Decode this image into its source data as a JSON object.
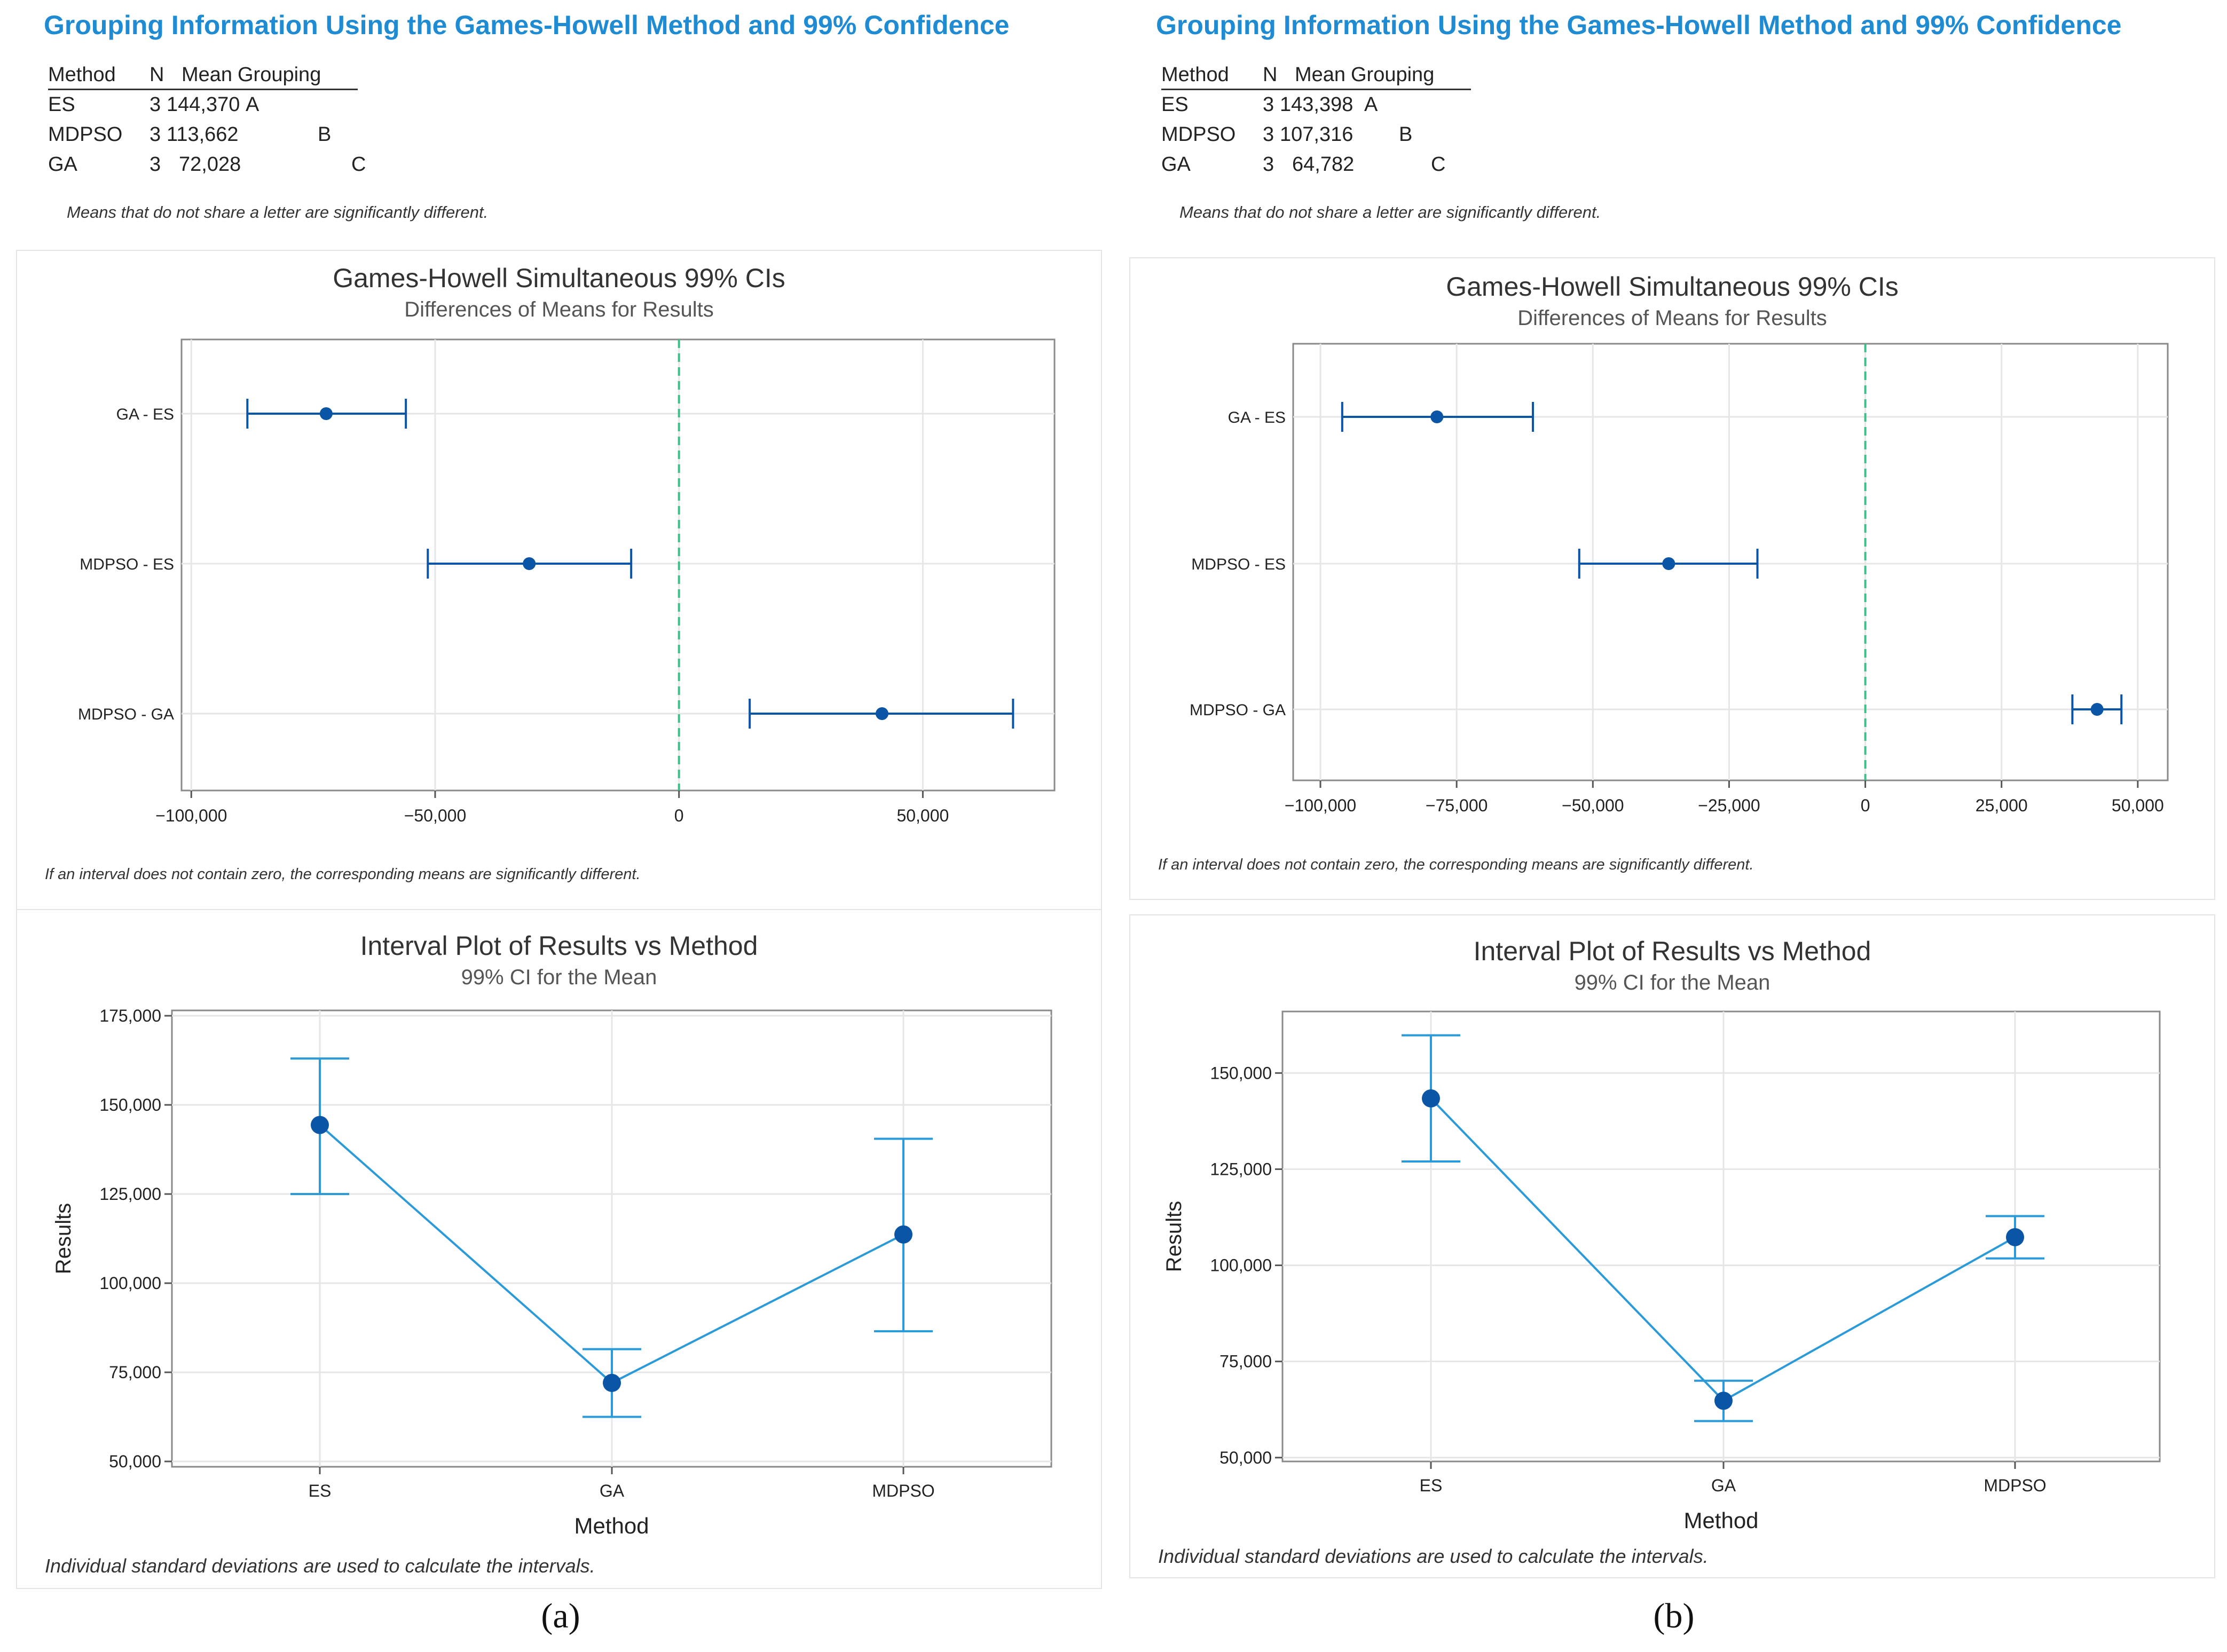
{
  "panels": [
    {
      "caption": "(a)",
      "grouping_title": "Grouping Information Using the Games-Howell Method and 99% Confidence",
      "grouping_header": {
        "method": "Method",
        "n": "N",
        "mean": "Mean",
        "grouping": "Grouping"
      },
      "grouping_rows": [
        {
          "method": "ES",
          "n": "3",
          "mean": "144,370",
          "group": "A"
        },
        {
          "method": "MDPSO",
          "n": "3",
          "mean": "113,662",
          "group": "B"
        },
        {
          "method": "GA",
          "n": "3",
          "mean": "72,028",
          "group": "C"
        }
      ],
      "grouping_note": "Means that do not share a letter are significantly different.",
      "ci_chart": {
        "title": "Games-Howell Simultaneous 99% CIs",
        "subtitle": "Differences of Means for Results",
        "footnote": "If an interval does not contain zero, the corresponding means are significantly different.",
        "xlim": [
          -102000,
          77000
        ],
        "ticks": [
          -100000,
          -50000,
          0,
          50000
        ],
        "tick_labels": [
          "−100,000",
          "−50,000",
          "0",
          "50,000"
        ],
        "chart_data": {
          "type": "interval",
          "categories": [
            "GA - ES",
            "MDPSO - ES",
            "MDPSO - GA"
          ],
          "estimates": [
            -72342,
            -30708,
            41634
          ],
          "lower": [
            -88500,
            -51500,
            14500
          ],
          "upper": [
            -56000,
            -9800,
            68500
          ],
          "reference_line": 0
        }
      },
      "interval_chart": {
        "title": "Interval Plot of Results vs Method",
        "subtitle": "99% CI for the Mean",
        "xlabel": "Method",
        "ylabel": "Results",
        "footnote": "Individual standard deviations are used to calculate the intervals.",
        "ylim": [
          48500,
          176500
        ],
        "ticks": [
          50000,
          75000,
          100000,
          125000,
          150000,
          175000
        ],
        "tick_labels": [
          "50,000",
          "75,000",
          "100,000",
          "125,000",
          "150,000",
          "175,000"
        ],
        "chart_data": {
          "type": "interval",
          "categories": [
            "ES",
            "GA",
            "MDPSO"
          ],
          "means": [
            144370,
            72028,
            113662
          ],
          "lower": [
            125000,
            62500,
            86500
          ],
          "upper": [
            163000,
            81500,
            140500
          ]
        }
      }
    },
    {
      "caption": "(b)",
      "grouping_title": "Grouping Information Using the Games-Howell Method and 99% Confidence",
      "grouping_header": {
        "method": "Method",
        "n": "N",
        "mean": "Mean",
        "grouping": "Grouping"
      },
      "grouping_rows": [
        {
          "method": "ES",
          "n": "3",
          "mean": "143,398",
          "group": "A"
        },
        {
          "method": "MDPSO",
          "n": "3",
          "mean": "107,316",
          "group": "B"
        },
        {
          "method": "GA",
          "n": "3",
          "mean": "64,782",
          "group": "C"
        }
      ],
      "grouping_note": "Means that do not share a letter are significantly different.",
      "ci_chart": {
        "title": "Games-Howell Simultaneous 99% CIs",
        "subtitle": "Differences of Means for Results",
        "footnote": "If an interval does not contain zero, the corresponding means are significantly different.",
        "xlim": [
          -105000,
          55500
        ],
        "ticks": [
          -100000,
          -75000,
          -50000,
          -25000,
          0,
          25000,
          50000
        ],
        "tick_labels": [
          "−100,000",
          "−75,000",
          "−50,000",
          "−25,000",
          "0",
          "25,000",
          "50,000"
        ],
        "chart_data": {
          "type": "interval",
          "categories": [
            "GA - ES",
            "MDPSO - ES",
            "MDPSO - GA"
          ],
          "estimates": [
            -78616,
            -36082,
            42534
          ],
          "lower": [
            -96000,
            -52500,
            38000
          ],
          "upper": [
            -61000,
            -19800,
            47000
          ],
          "reference_line": 0
        }
      },
      "interval_chart": {
        "title": "Interval Plot of Results vs Method",
        "subtitle": "99% CI for the Mean",
        "xlabel": "Method",
        "ylabel": "Results",
        "footnote": "Individual standard deviations are used to calculate the intervals.",
        "ylim": [
          49000,
          166000
        ],
        "ticks": [
          50000,
          75000,
          100000,
          125000,
          150000
        ],
        "tick_labels": [
          "50,000",
          "75,000",
          "100,000",
          "125,000",
          "150,000"
        ],
        "chart_data": {
          "type": "interval",
          "categories": [
            "ES",
            "GA",
            "MDPSO"
          ],
          "means": [
            143398,
            64782,
            107316
          ],
          "lower": [
            127000,
            59500,
            101800
          ],
          "upper": [
            159800,
            70000,
            112800
          ]
        }
      }
    }
  ],
  "colors": {
    "title_blue": "#1e8bd2",
    "interval_marker": "#0b55a6",
    "line_blue": "#2a9ad8",
    "zero_line": "#3fbf87",
    "grid": "#e6e6e6"
  }
}
